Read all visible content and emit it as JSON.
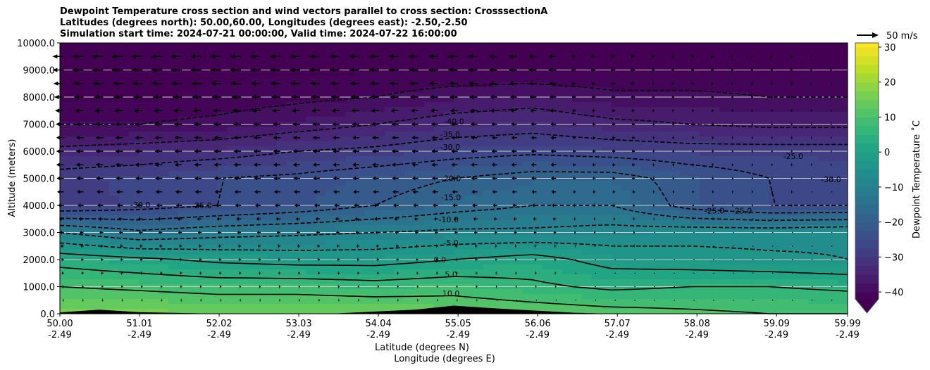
{
  "chart_data": {
    "type": "heatmap",
    "title_lines": [
      "Dewpoint Temperature cross section and wind vectors parallel to cross section: CrosssectionA",
      "Latitudes (degrees north): 50.00,60.00, Longitudes (degrees east): -2.50,-2.50",
      "Simulation start time: 2024-07-21 00:00:00, Valid time: 2024-07-22 16:00:00"
    ],
    "xlabel": "Latitude (degrees N)",
    "xlabel2": "Longitude (degrees E)",
    "ylabel": "Altitude (meters)",
    "xlim": [
      50.0,
      59.99
    ],
    "ylim": [
      0,
      10000
    ],
    "x_ticks": [
      {
        "lat": "50.00",
        "lon": "-2.49",
        "v": 50.0
      },
      {
        "lat": "51.01",
        "lon": "-2.49",
        "v": 51.01
      },
      {
        "lat": "52.02",
        "lon": "-2.49",
        "v": 52.02
      },
      {
        "lat": "53.03",
        "lon": "-2.49",
        "v": 53.03
      },
      {
        "lat": "54.04",
        "lon": "-2.49",
        "v": 54.04
      },
      {
        "lat": "55.05",
        "lon": "-2.49",
        "v": 55.05
      },
      {
        "lat": "56.06",
        "lon": "-2.49",
        "v": 56.06
      },
      {
        "lat": "57.07",
        "lon": "-2.49",
        "v": 57.07
      },
      {
        "lat": "58.08",
        "lon": "-2.49",
        "v": 58.08
      },
      {
        "lat": "59.09",
        "lon": "-2.49",
        "v": 59.09
      },
      {
        "lat": "59.99",
        "lon": "-2.49",
        "v": 59.99
      }
    ],
    "y_ticks": [
      "0.0",
      "1000.0",
      "2000.0",
      "3000.0",
      "4000.0",
      "5000.0",
      "6000.0",
      "7000.0",
      "8000.0",
      "9000.0",
      "10000.0"
    ],
    "grid": "horizontal",
    "colorbar": {
      "label_text": "Dewpoint Temperature ˚C",
      "min": -42,
      "max": 31.2,
      "level_step": 2.5,
      "ticks": [
        "30",
        "20",
        "10",
        "0",
        "−10",
        "−20",
        "−30",
        "−40"
      ],
      "tick_values": [
        30,
        20,
        10,
        0,
        -10,
        -20,
        -30,
        -40
      ],
      "extend": "min",
      "cmap": "viridis"
    },
    "wind_key": {
      "label": "50 m/s",
      "value": 50
    },
    "grid_lats": [
      50,
      51,
      52,
      53,
      54,
      55,
      56,
      57,
      58,
      59,
      60
    ],
    "grid_alts": [
      0,
      1000,
      2000,
      3000,
      4000,
      5000,
      6000,
      7000,
      8000,
      9000,
      10000
    ],
    "dewpoint": [
      [
        16,
        16,
        15,
        15,
        15,
        14,
        13,
        12,
        11,
        10,
        10
      ],
      [
        10,
        9,
        8,
        8,
        7,
        8,
        6,
        4,
        5,
        5,
        4
      ],
      [
        3,
        1,
        -1,
        -2,
        -2,
        0,
        2,
        -2,
        -3,
        -4,
        -5
      ],
      [
        -10,
        -14,
        -12,
        -11,
        -10,
        -9,
        -9,
        -8,
        -7,
        -7,
        -6
      ],
      [
        -29,
        -27,
        -25,
        -23,
        -20,
        -17,
        -15,
        -15,
        -22,
        -25,
        -25
      ],
      [
        -28,
        -27,
        -25,
        -24,
        -22,
        -20,
        -18,
        -18,
        -22,
        -25,
        -27
      ],
      [
        -34,
        -33,
        -32,
        -30,
        -29,
        -27,
        -26,
        -27,
        -28,
        -28,
        -28
      ],
      [
        -40,
        -40,
        -39,
        -37,
        -35,
        -33,
        -32,
        -34,
        -35,
        -36,
        -36
      ],
      [
        -43,
        -43,
        -42,
        -41,
        -40,
        -38,
        -37,
        -39,
        -39,
        -40,
        -40
      ],
      [
        -43,
        -43,
        -43,
        -43,
        -43,
        -43,
        -43,
        -43,
        -43,
        -43,
        -43
      ],
      [
        -44,
        -44,
        -44,
        -44,
        -44,
        -44,
        -44,
        -44,
        -44,
        -44,
        -44
      ]
    ],
    "contour_levels_dashed": [
      -40,
      -35,
      -30,
      -25,
      -20,
      -15,
      -10,
      -5
    ],
    "contour_levels_solid": [
      0,
      5,
      10
    ],
    "contour_labels": [
      {
        "text": "-40.0",
        "lat": 55.0,
        "alt": 7100
      },
      {
        "text": "-35.0",
        "lat": 54.95,
        "alt": 6620
      },
      {
        "text": "-30.0",
        "lat": 54.95,
        "alt": 6150
      },
      {
        "text": "-20.0",
        "lat": 54.96,
        "alt": 5000
      },
      {
        "text": "-15.0",
        "lat": 54.96,
        "alt": 4300
      },
      {
        "text": "-10.0",
        "lat": 54.93,
        "alt": 3480
      },
      {
        "text": "-5.0",
        "lat": 54.96,
        "alt": 2620
      },
      {
        "text": "0.0",
        "lat": 54.82,
        "alt": 2000
      },
      {
        "text": "5.0",
        "lat": 54.96,
        "alt": 1450
      },
      {
        "text": "10.0",
        "lat": 54.96,
        "alt": 750
      },
      {
        "text": "-30.0",
        "lat": 51.02,
        "alt": 4030
      },
      {
        "text": "-25.0",
        "lat": 51.8,
        "alt": 4000
      },
      {
        "text": "-25.0",
        "lat": 59.3,
        "alt": 5820
      },
      {
        "text": "-30.0",
        "lat": 59.78,
        "alt": 4960
      },
      {
        "text": "-25.0",
        "lat": 58.3,
        "alt": 3800
      },
      {
        "text": "-25.0",
        "lat": 58.65,
        "alt": 3800
      }
    ],
    "terrain_lats": [
      50,
      50.5,
      51,
      51.5,
      52,
      52.5,
      53,
      53.5,
      54,
      54.5,
      55,
      55.5,
      56,
      56.5,
      57,
      57.5,
      57.6,
      58
    ],
    "terrain_alt": [
      50,
      150,
      60,
      30,
      0,
      0,
      0,
      10,
      80,
      150,
      300,
      200,
      120,
      40,
      0,
      0,
      0,
      0
    ],
    "wind_alts": [
      0,
      500,
      1000,
      1500,
      2000,
      2500,
      3000,
      3500,
      4000,
      4500,
      5000,
      5500,
      6000,
      6500,
      7000,
      7500,
      8000,
      8500,
      9000,
      9500
    ],
    "wind_u": [
      -2,
      -3,
      -4,
      -5,
      -6,
      -7,
      -9,
      -11,
      -14,
      -16,
      -17,
      -18,
      -18,
      -18,
      -19,
      -21,
      -23,
      -25,
      -27,
      -27
    ],
    "wind_lat_factor": [
      1,
      1,
      1,
      0.95,
      0.9,
      0.85,
      0.7,
      0.4,
      0.25,
      0.2,
      0.15
    ]
  }
}
